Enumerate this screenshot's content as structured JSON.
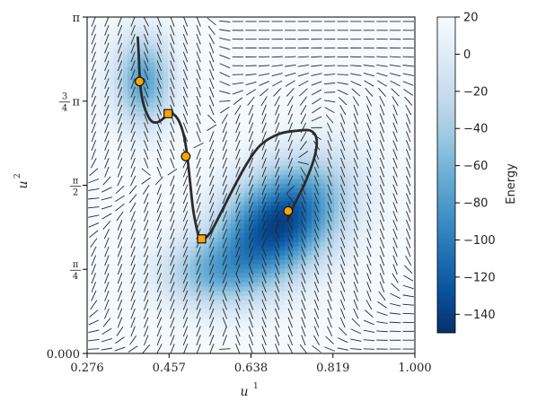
{
  "chart_data": {
    "type": "heatmap",
    "title": "",
    "xlabel": "u",
    "xlabel_sup": "1",
    "ylabel": "u",
    "ylabel_sup": "2",
    "xlim": [
      0.276,
      1.0
    ],
    "ylim": [
      0,
      3.14159
    ],
    "x_ticks": [
      {
        "value": 0.276,
        "label": "0.276"
      },
      {
        "value": 0.457,
        "label": "0.457"
      },
      {
        "value": 0.638,
        "label": "0.638"
      },
      {
        "value": 0.819,
        "label": "0.819"
      },
      {
        "value": 1.0,
        "label": "1.000"
      }
    ],
    "y_ticks": [
      {
        "value": 0,
        "label": "0.000"
      },
      {
        "value": 0.7854,
        "label": "π/4"
      },
      {
        "value": 1.5708,
        "label": "π/2"
      },
      {
        "value": 2.3562,
        "label": "3/4π"
      },
      {
        "value": 3.14159,
        "label": "π"
      }
    ],
    "colorbar": {
      "label": "Energy",
      "range": [
        -150,
        20
      ],
      "ticks": [
        20,
        0,
        -20,
        -40,
        -60,
        -80,
        -100,
        -120,
        -140
      ],
      "colormap": [
        "#08306b",
        "#08519c",
        "#2171b5",
        "#4292c6",
        "#6baed6",
        "#9ecae1",
        "#c6dbef",
        "#deebf7",
        "#f7fbff"
      ]
    },
    "energy_field": {
      "baseline": 20,
      "wells": [
        {
          "u1": 0.7,
          "u2": 1.22,
          "depth": 160,
          "sigma_u1": 0.11,
          "sigma_u2": 0.32,
          "angle_deg": 38
        },
        {
          "u1": 0.4,
          "u2": 2.55,
          "depth": 95,
          "sigma_u1": 0.045,
          "sigma_u2": 0.3,
          "angle_deg": 0
        },
        {
          "u1": 0.54,
          "u2": 0.75,
          "depth": 55,
          "sigma_u1": 0.08,
          "sigma_u2": 0.22,
          "angle_deg": 0
        }
      ]
    },
    "trajectory": [
      [
        0.388,
        2.95
      ],
      [
        0.39,
        2.8
      ],
      [
        0.392,
        2.6
      ],
      [
        0.396,
        2.42
      ],
      [
        0.405,
        2.27
      ],
      [
        0.418,
        2.17
      ],
      [
        0.432,
        2.16
      ],
      [
        0.446,
        2.2
      ],
      [
        0.455,
        2.24
      ],
      [
        0.468,
        2.23
      ],
      [
        0.48,
        2.16
      ],
      [
        0.49,
        2.03
      ],
      [
        0.497,
        1.85
      ],
      [
        0.503,
        1.62
      ],
      [
        0.51,
        1.35
      ],
      [
        0.518,
        1.17
      ],
      [
        0.525,
        1.07
      ],
      [
        0.535,
        1.07
      ],
      [
        0.55,
        1.14
      ],
      [
        0.57,
        1.3
      ],
      [
        0.6,
        1.55
      ],
      [
        0.63,
        1.78
      ],
      [
        0.66,
        1.95
      ],
      [
        0.7,
        2.05
      ],
      [
        0.74,
        2.08
      ],
      [
        0.77,
        2.08
      ],
      [
        0.783,
        2.0
      ],
      [
        0.778,
        1.83
      ],
      [
        0.758,
        1.6
      ],
      [
        0.735,
        1.4
      ],
      [
        0.718,
        1.24
      ]
    ],
    "circle_markers": [
      [
        0.392,
        2.54
      ],
      [
        0.494,
        1.84
      ],
      [
        0.72,
        1.33
      ]
    ],
    "square_markers": [
      [
        0.455,
        2.24
      ],
      [
        0.529,
        1.07
      ]
    ],
    "marker_color": "#ffa500",
    "line_color": "#2b2b2b"
  }
}
